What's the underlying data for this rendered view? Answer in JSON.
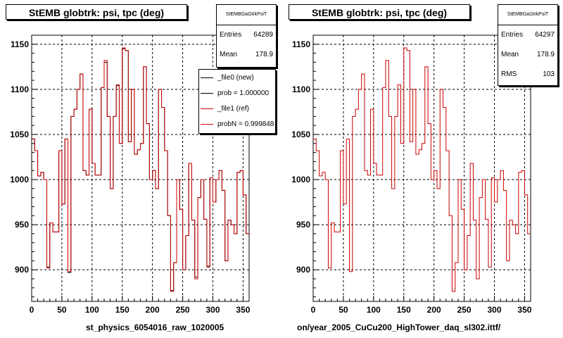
{
  "colors": {
    "new": "#000000",
    "ref": "#cc0000"
  },
  "left": {
    "title": "StEMB globtrk: psi, tpc (deg)",
    "stats_name": "StEMBGaGtrkPsiT",
    "entries_label": "Entries",
    "entries": "64289",
    "mean_label": "Mean",
    "mean": "178.9",
    "xlabel": "st_physics_6054016_raw_1020005",
    "legend": [
      {
        "label": "_file0 (new)",
        "color": "#000000"
      },
      {
        "label": "prob = 1.000000",
        "color": "#000000"
      },
      {
        "label": "_file1 (ref)",
        "color": "#cc0000"
      },
      {
        "label": "probN = 0.999848",
        "color": "#cc0000"
      }
    ]
  },
  "right": {
    "title": "StEMB globtrk: psi, tpc (deg)",
    "stats_name": "StEMBGaGtrkPsiT",
    "entries_label": "Entries",
    "entries": "64297",
    "mean_label": "Mean",
    "mean": "178.9",
    "rms_label": "RMS",
    "rms": "103",
    "xlabel": "on/year_2005_CuCu200_HighTower_daq_sl302.ittf/"
  },
  "chart_data": [
    {
      "type": "line",
      "title": "StEMB globtrk: psi, tpc (deg)",
      "xlabel": "st_physics_6054016_raw_1020005",
      "xlim": [
        0,
        360
      ],
      "ylim": [
        865,
        1160
      ],
      "xticks": [
        0,
        50,
        100,
        150,
        200,
        250,
        300,
        350
      ],
      "yticks": [
        900,
        950,
        1000,
        1050,
        1100,
        1150
      ],
      "grid": true,
      "legend_position": "top-right",
      "bin_width": 5,
      "series": [
        {
          "name": "_file0 (new)",
          "values": [
            1045,
            1032,
            1004,
            1008,
            1000,
            903,
            952,
            942,
            942,
            1032,
            973,
            1045,
            897,
            1070,
            1078,
            1100,
            1117,
            1010,
            1005,
            1078,
            1018,
            1005,
            1005,
            1102,
            1130,
            1070,
            990,
            1070,
            1104,
            1040,
            1145,
            1143,
            1042,
            1100,
            1028,
            1033,
            1040,
            1125,
            1062,
            1000,
            1010,
            990,
            1100,
            1080,
            1032,
            960,
            877,
            908,
            1000,
            967,
            900,
            938,
            1018,
            955,
            892,
            980,
            1000,
            956,
            904,
            1002,
            975,
            1000,
            1010,
            988,
            910,
            955,
            950,
            940,
            1008,
            1010,
            983,
            940
          ]
        },
        {
          "name": "_file1 (ref)",
          "values": [
            1045,
            1032,
            1004,
            1008,
            1000,
            902,
            952,
            942,
            942,
            1032,
            973,
            1045,
            898,
            1070,
            1078,
            1100,
            1117,
            1010,
            1005,
            1078,
            1018,
            1005,
            1005,
            1102,
            1132,
            1070,
            990,
            1070,
            1105,
            1040,
            1146,
            1143,
            1042,
            1100,
            1028,
            1033,
            1040,
            1125,
            1062,
            1000,
            1010,
            990,
            1100,
            1080,
            1032,
            960,
            876,
            908,
            1000,
            967,
            900,
            938,
            1018,
            955,
            890,
            980,
            1000,
            956,
            903,
            1002,
            975,
            1000,
            1010,
            988,
            910,
            955,
            950,
            940,
            1008,
            1010,
            983,
            940
          ]
        }
      ]
    },
    {
      "type": "line",
      "title": "StEMB globtrk: psi, tpc (deg)",
      "xlabel": "on/year_2005_CuCu200_HighTower_daq_sl302.ittf/",
      "xlim": [
        0,
        360
      ],
      "ylim": [
        865,
        1160
      ],
      "xticks": [
        0,
        50,
        100,
        150,
        200,
        250,
        300,
        350
      ],
      "yticks": [
        900,
        950,
        1000,
        1050,
        1100,
        1150
      ],
      "grid": true,
      "bin_width": 5,
      "series": [
        {
          "values": [
            1045,
            1032,
            1004,
            1008,
            1000,
            902,
            952,
            942,
            942,
            1032,
            973,
            1045,
            898,
            1070,
            1078,
            1100,
            1117,
            1010,
            1005,
            1078,
            1018,
            1005,
            1005,
            1102,
            1132,
            1070,
            990,
            1070,
            1105,
            1040,
            1146,
            1143,
            1042,
            1100,
            1028,
            1033,
            1040,
            1125,
            1062,
            1000,
            1010,
            990,
            1100,
            1080,
            1032,
            960,
            876,
            908,
            1000,
            967,
            900,
            938,
            1018,
            955,
            890,
            980,
            1000,
            956,
            903,
            1002,
            975,
            1000,
            1010,
            988,
            910,
            955,
            950,
            940,
            1008,
            1010,
            983,
            940
          ]
        }
      ]
    }
  ]
}
